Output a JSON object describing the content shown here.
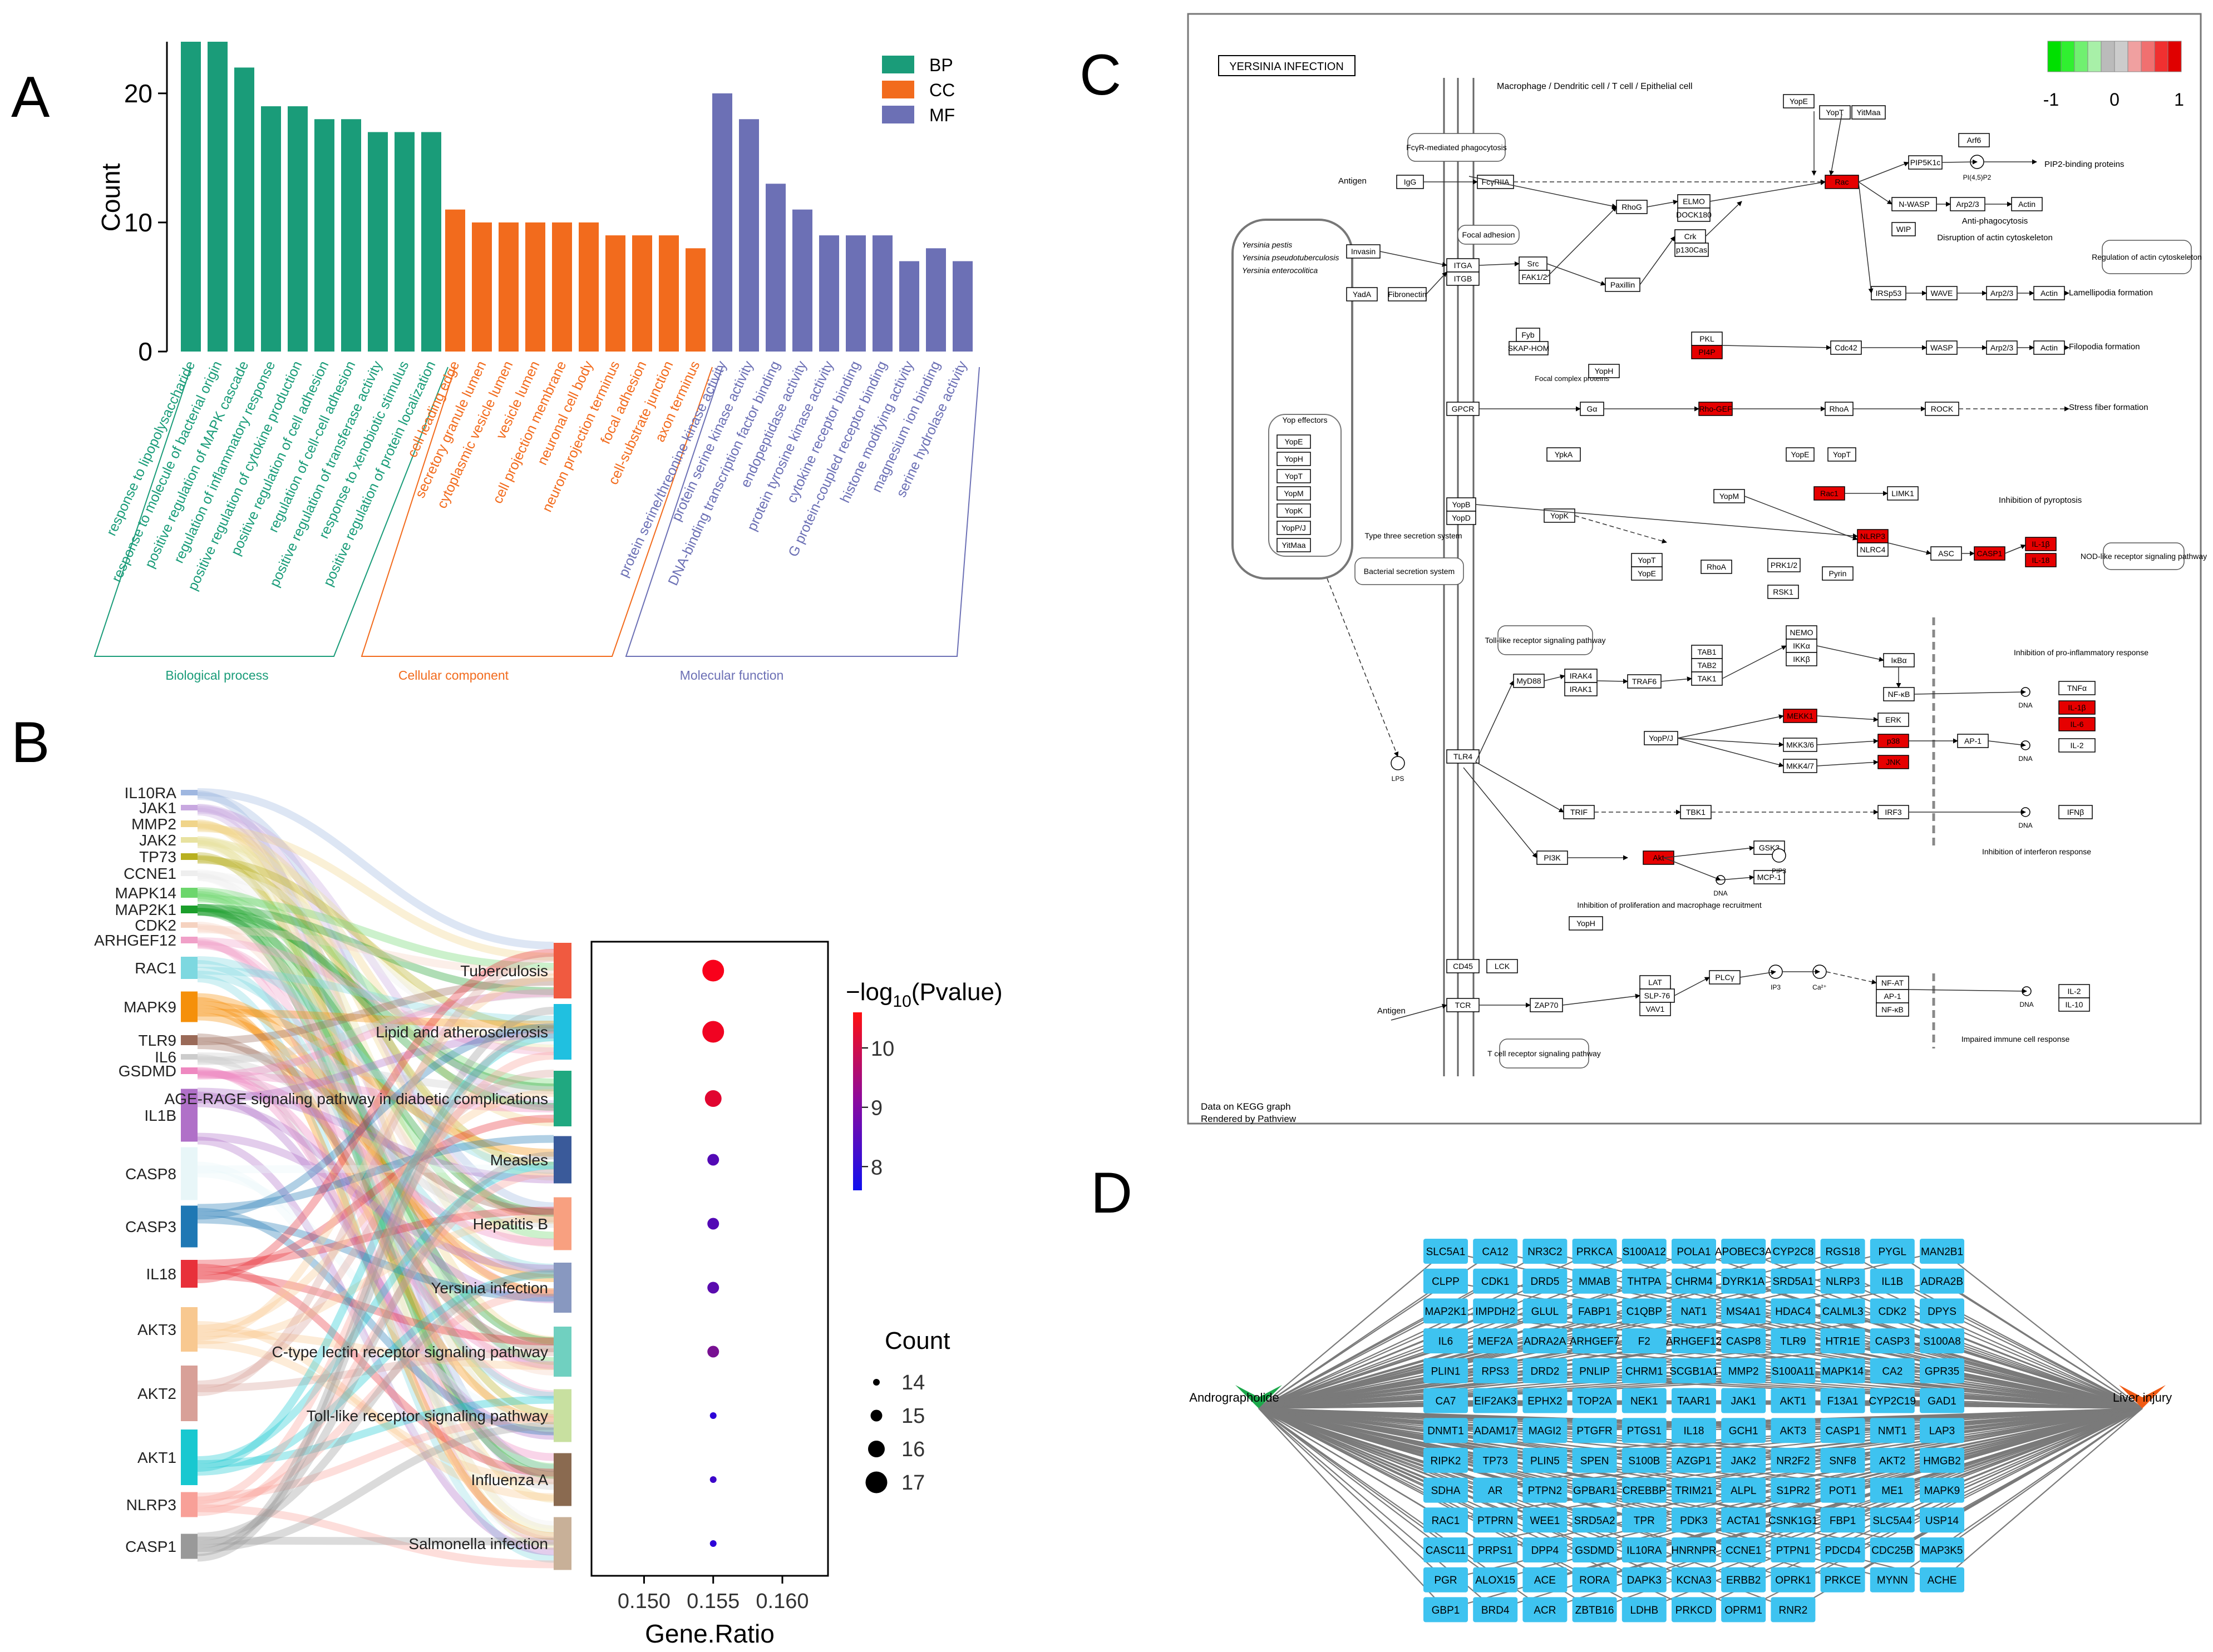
{
  "panel_labels": {
    "a": "A",
    "b": "B",
    "c": "C",
    "d": "D"
  },
  "colors": {
    "bp": "#1a9c79",
    "cc": "#f26b1d",
    "mf": "#6c70b5",
    "node": "#3ec3f0",
    "kegg_red": "#e60000"
  },
  "panelA": {
    "chart_data": {
      "type": "bar",
      "ylabel": "Count",
      "ylim": [
        0,
        24
      ],
      "yticks": [
        0,
        10,
        20
      ],
      "legend": [
        {
          "key": "BP",
          "color": "#1a9c79"
        },
        {
          "key": "CC",
          "color": "#f26b1d"
        },
        {
          "key": "MF",
          "color": "#6c70b5"
        }
      ],
      "groups": [
        {
          "name": "BP",
          "label": "Biological process",
          "color": "#1a9c79",
          "categories": [
            "response to lipopolysaccharide",
            "response to molecule of bacterial origin",
            "positive regulation of MAPK cascade",
            "regulation of inflammatory response",
            "positive regulation of cytokine production",
            "positive regulation of cell adhesion",
            "regulation of cell-cell adhesion",
            "positive regulation of transferase activity",
            "response to xenobiotic stimulus",
            "positive regulation of protein localization"
          ],
          "values": [
            24,
            24,
            22,
            19,
            19,
            18,
            18,
            17,
            17,
            17
          ]
        },
        {
          "name": "CC",
          "label": "Cellular component",
          "color": "#f26b1d",
          "categories": [
            "cell leading edge",
            "secretory granule lumen",
            "cytoplasmic vesicle lumen",
            "vesicle lumen",
            "cell projection membrane",
            "neuronal cell body",
            "neuron projection terminus",
            "focal adhesion",
            "cell-substrate junction",
            "axon terminus"
          ],
          "values": [
            11,
            10,
            10,
            10,
            10,
            10,
            9,
            9,
            9,
            8
          ]
        },
        {
          "name": "MF",
          "label": "Molecular function",
          "color": "#6c70b5",
          "categories": [
            "protein serine/threonine kinase activity",
            "protein serine kinase activity",
            "DNA-binding transcription factor binding",
            "endopeptidase activity",
            "protein tyrosine kinase activity",
            "cytokine receptor binding",
            "G protein-coupled receptor binding",
            "histone modifying activity",
            "magnesium ion binding",
            "serine hydrolase activity"
          ],
          "values": [
            20,
            18,
            13,
            11,
            9,
            9,
            9,
            7,
            8,
            7
          ]
        }
      ]
    }
  },
  "panelB": {
    "genes": [
      {
        "name": "IL10RA",
        "color": "#9fb7e0"
      },
      {
        "name": "JAK1",
        "color": "#c8a8e0"
      },
      {
        "name": "MMP2",
        "color": "#f0d48a"
      },
      {
        "name": "JAK2",
        "color": "#e8e2a0"
      },
      {
        "name": "TP73",
        "color": "#b8b020"
      },
      {
        "name": "CCNE1",
        "color": "#eeeeee"
      },
      {
        "name": "MAPK14",
        "color": "#6cd66c"
      },
      {
        "name": "MAP2K1",
        "color": "#1b9e2b"
      },
      {
        "name": "CDK2",
        "color": "#f5d2c0"
      },
      {
        "name": "ARHGEF12",
        "color": "#f0a0c8"
      },
      {
        "name": "RAC1",
        "color": "#7dd8e0"
      },
      {
        "name": "MAPK9",
        "color": "#f5900a"
      },
      {
        "name": "TLR9",
        "color": "#9a6a58"
      },
      {
        "name": "IL6",
        "color": "#cccccc"
      },
      {
        "name": "GSDMD",
        "color": "#ee88c0"
      },
      {
        "name": "IL1B",
        "color": "#b070c8"
      },
      {
        "name": "CASP8",
        "color": "#e8f6f8"
      },
      {
        "name": "CASP3",
        "color": "#1f78b4"
      },
      {
        "name": "IL18",
        "color": "#e8303a"
      },
      {
        "name": "AKT3",
        "color": "#f8c890"
      },
      {
        "name": "AKT2",
        "color": "#d8a098"
      },
      {
        "name": "AKT1",
        "color": "#18c8d0"
      },
      {
        "name": "NLRP3",
        "color": "#f8a098"
      },
      {
        "name": "CASP1",
        "color": "#999999"
      }
    ],
    "pathways": [
      {
        "name": "Tuberculosis",
        "color": "#f05a40",
        "gene_ratio": 0.155,
        "count": 17,
        "neglog10p": 10.5
      },
      {
        "name": "Lipid and atherosclerosis",
        "color": "#20c0e0",
        "gene_ratio": 0.155,
        "count": 17,
        "neglog10p": 10.4
      },
      {
        "name": "AGE-RAGE signaling pathway in diabetic complications",
        "color": "#20a880",
        "gene_ratio": 0.155,
        "count": 16,
        "neglog10p": 10.2
      },
      {
        "name": "Measles",
        "color": "#3a5a9a",
        "gene_ratio": 0.155,
        "count": 15,
        "neglog10p": 8.3
      },
      {
        "name": "Hepatitis B",
        "color": "#f8a080",
        "gene_ratio": 0.155,
        "count": 15,
        "neglog10p": 8.3
      },
      {
        "name": "Yersinia infection",
        "color": "#8898c0",
        "gene_ratio": 0.155,
        "count": 15,
        "neglog10p": 8.4
      },
      {
        "name": "C-type lectin receptor signaling pathway",
        "color": "#70d0c0",
        "gene_ratio": 0.155,
        "count": 15,
        "neglog10p": 8.8
      },
      {
        "name": "Toll-like receptor signaling pathway",
        "color": "#c8e0a0",
        "gene_ratio": 0.155,
        "count": 14,
        "neglog10p": 7.8
      },
      {
        "name": "Influenza A",
        "color": "#8a6a50",
        "gene_ratio": 0.155,
        "count": 14,
        "neglog10p": 8.0
      },
      {
        "name": "Salmonella infection",
        "color": "#c8b098",
        "gene_ratio": 0.155,
        "count": 14,
        "neglog10p": 7.8
      }
    ],
    "chart_data": {
      "type": "scatter",
      "xlabel": "Gene.Ratio",
      "xlim": [
        0.1462,
        0.1633
      ],
      "xticks": [
        "0.150",
        "0.155",
        "0.160"
      ],
      "xtick_values": [
        0.15,
        0.155,
        0.16
      ],
      "color_legend": {
        "title_prefix": "−log",
        "title_sub": "10",
        "title_suffix": "(Pvalue)",
        "ticks": [
          10,
          9,
          8
        ],
        "range": [
          7.6,
          10.6
        ]
      },
      "size_legend": {
        "title": "Count",
        "values": [
          14,
          15,
          16,
          17
        ]
      }
    }
  },
  "panelC": {
    "title": "YERSINIA INFECTION",
    "scale": {
      "ticks": [
        "-1",
        "0",
        "1"
      ]
    },
    "footer": [
      "Data on KEGG graph",
      "Rendered by Pathview"
    ],
    "labels": {
      "macrophage": "Macrophage / Dendritic cell / T cell / Epithelial cell",
      "fcyr": "FcγR-mediated phagocytosis",
      "focal": "Focal adhesion",
      "species": [
        "Yersinia pestis",
        "Yersinia pseudotuberculosis",
        "Yersinia enterocolitica"
      ],
      "yop_effectors": "Yop effectors",
      "t3ss": "Type three secretion system",
      "bsec": "Bacterial secretion system",
      "antigen1": "Antigen",
      "antigen2": "Antigen",
      "anti_phago": "Anti-phagocytosis",
      "disruption": "Disruption of actin cytoskeleton",
      "reg_actin": "Regulation of actin cytoskeleton",
      "lamellipodia": "Lamellipodia formation",
      "filopodia": "Filopodia formation",
      "stress": "Stress fiber formation",
      "pyroptosis": "Inhibition of pyroptosis",
      "nod": "NOD-like receptor signaling pathway",
      "tlr_path": "Toll-like receptor signaling pathway",
      "proinfl": "Inhibition of pro-inflammatory response",
      "interferon": "Inhibition of interferon response",
      "prolif": "Inhibition of proliferation and macrophage recruitment",
      "tcr_path": "T cell receptor signaling pathway",
      "impaired": "Impaired immune cell response",
      "pip2bind": "PIP2-binding proteins",
      "focal_complex": "Focal complex proteins",
      "dna": "DNA",
      "lps": "LPS"
    },
    "genes": {
      "yope": "YopE",
      "yopt": "YopT",
      "yitma": "YitMaa",
      "arf6": "Arf6",
      "pip5k": "PIP5K1c",
      "pip2": "PI(4,5)P2",
      "nwasp": "N-WASP",
      "arp": "Arp2/3",
      "actin": "Actin",
      "wip": "WIP",
      "fcgr": "FcγRIIA",
      "igg": "IgG",
      "rac": "Rac",
      "rhog": "RhoG",
      "elmo": "ELMO",
      "dock": "DOCK180",
      "crk": "Crk",
      "p130": "p130Cas",
      "invasin": "Invasin",
      "yada": "YadA",
      "fibro": "Fibronectin",
      "itga": "ITGA",
      "itgb": "ITGB",
      "src": "Src",
      "fak": "FAK1/2",
      "paxillin": "Paxillin",
      "fyb": "Fyb",
      "skap": "SKAP-HOM",
      "yoph": "YopH",
      "pkl": "PKL",
      "pi4p": "PI4P",
      "cdc42": "Cdc42",
      "wasp": "WASP",
      "irsp": "IRSp53",
      "wave": "WAVE",
      "gpcr": "GPCR",
      "ga": "Gα",
      "rho": "Rho-GEF",
      "rhoa": "RhoA",
      "rock": "ROCK",
      "yopm_rt": "YpkA",
      "yopb": "YopB",
      "yopd": "YopD",
      "yopk": "YopK",
      "yopm": "YopM",
      "limk": "LIMK1",
      "rac1b": "Rac1",
      "nlrp": "NLRP3",
      "nlrc4": "NLRC4",
      "asc": "ASC",
      "casp1": "CASP1",
      "il1b": "IL-1β",
      "il18": "IL-18",
      "prk": "PRK1/2",
      "rsk1": "RSK1",
      "pyrin": "Pyrin",
      "myd88": "MyD88",
      "irak4": "IRAK4",
      "irak1": "IRAK1",
      "traf6": "TRAF6",
      "tab1": "TAB1",
      "tab2": "TAB2",
      "tak1": "TAK1",
      "nemo": "NEMO",
      "ikka": "IKKα",
      "ikkb": "IKKβ",
      "ikba": "IκBα",
      "nfkb": "NF-κB",
      "yopp": "YopP/J",
      "mekk": "MEKK1",
      "mkk36": "MKK3/6",
      "mkk47": "MKK4/7",
      "erk": "ERK",
      "p38": "p38",
      "jnk": "JNK",
      "ap1": "AP-1",
      "tnfa": "TNFα",
      "il1bx": "IL-1β",
      "il6x": "IL-6",
      "il2x": "IL-2",
      "tlr4": "TLR4",
      "trif": "TRIF",
      "tbk1": "TBK1",
      "irf3": "IRF3",
      "ifnb": "IFNβ",
      "pi3k": "PI3K",
      "pip3": "PIP3",
      "akt": "Akt",
      "gsk3": "GSK3",
      "mcp1": "MCP-1",
      "cd45": "CD45",
      "lck": "LCK",
      "tcr": "TCR",
      "zap70": "ZAP70",
      "lat": "LAT",
      "slp": "SLP-76",
      "vav": "VAV1",
      "plcg": "PLCγ",
      "ip3": "IP3",
      "ca": "Ca²⁺",
      "nfat": "NF-AT",
      "ap1b": "AP-1",
      "nfkb2": "NF-κB",
      "il2b": "IL-2",
      "il10": "IL-10",
      "yopj": "YopJ",
      "mek": "MEK1/2"
    }
  },
  "panelD": {
    "left_label": "Andrographolide",
    "right_label": "Liver injury",
    "nodes": [
      "SLC5A1",
      "CA12",
      "NR3C2",
      "PRKCA",
      "S100A12",
      "POLA1",
      "APOBEC3A",
      "CYP2C8",
      "RGS18",
      "PYGL",
      "MAN2B1",
      "CLPP",
      "CDK1",
      "DRD5",
      "MMAB",
      "THTPA",
      "CHRM4",
      "DYRK1A",
      "SRD5A1",
      "NLRP3",
      "IL1B",
      "ADRA2B",
      "MAP2K1",
      "IMPDH2",
      "GLUL",
      "FABP1",
      "C1QBP",
      "NAT1",
      "MS4A1",
      "HDAC4",
      "CALML3",
      "CDK2",
      "DPYS",
      "IL6",
      "MEF2A",
      "ADRA2A",
      "ARHGEF7",
      "F2",
      "ARHGEF12",
      "CASP8",
      "TLR9",
      "HTR1E",
      "CASP3",
      "S100A8",
      "PLIN1",
      "RPS3",
      "DRD2",
      "PNLIP",
      "CHRM1",
      "SCGB1A1",
      "MMP2",
      "S100A11",
      "MAPK14",
      "CA2",
      "GPR35",
      "CA7",
      "EIF2AK3",
      "EPHX2",
      "TOP2A",
      "NEK1",
      "TAAR1",
      "JAK1",
      "AKT1",
      "F13A1",
      "CYP2C19",
      "GAD1",
      "DNMT1",
      "ADAM17",
      "MAGI2",
      "PTGFR",
      "PTGS1",
      "IL18",
      "GCH1",
      "AKT3",
      "CASP1",
      "NMT1",
      "LAP3",
      "RIPK2",
      "TP73",
      "PLIN5",
      "SPEN",
      "S100B",
      "AZGP1",
      "JAK2",
      "NR2F2",
      "SNF8",
      "AKT2",
      "HMGB2",
      "SDHA",
      "AR",
      "PTPN2",
      "GPBAR1",
      "CREBBP",
      "TRIM21",
      "ALPL",
      "S1PR2",
      "POT1",
      "ME1",
      "MAPK9",
      "RAC1",
      "PTPRN",
      "WEE1",
      "SRD5A2",
      "TPR",
      "PDK3",
      "ACTA1",
      "CSNK1G1",
      "FBP1",
      "SLC5A4",
      "USP14",
      "CASC11",
      "PRPS1",
      "DPP4",
      "GSDMD",
      "IL10RA",
      "HNRNPR",
      "CCNE1",
      "PTPN1",
      "PDCD4",
      "CDC25B",
      "MAP3K5",
      "PGR",
      "ALOX15",
      "ACE",
      "RORA",
      "DAPK3",
      "KCNA3",
      "ERBB2",
      "OPRK1",
      "PRKCE",
      "MYNN",
      "ACHE",
      "GBP1",
      "BRD4",
      "ACR",
      "ZBTB16",
      "LDHB",
      "PRKCD",
      "OPRM1",
      "RNR2"
    ]
  }
}
